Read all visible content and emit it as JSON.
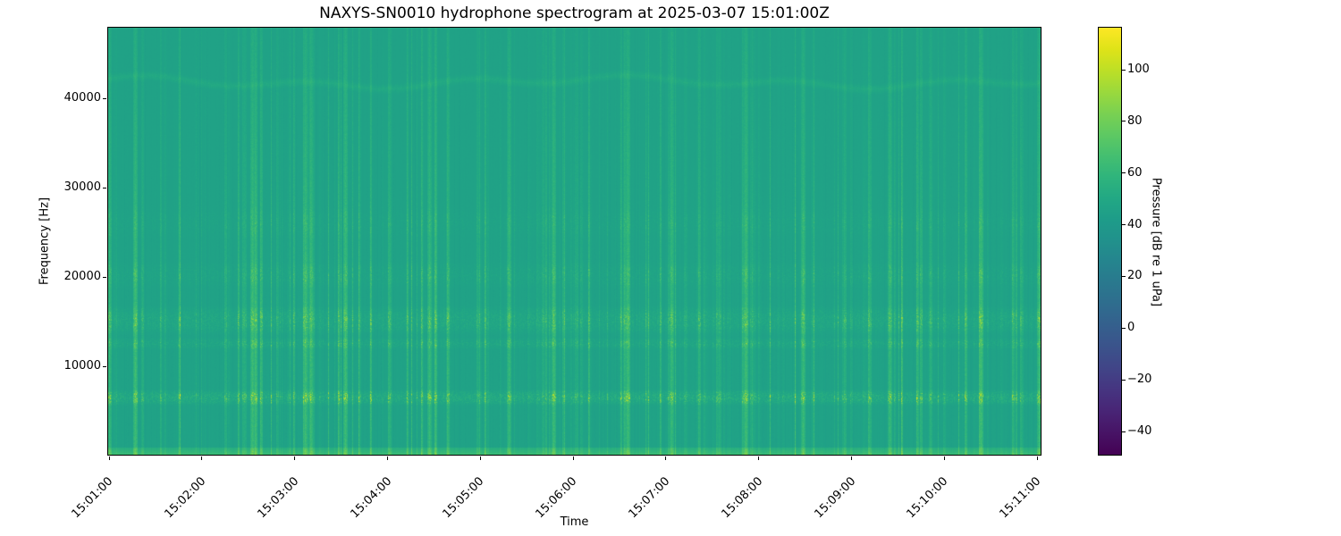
{
  "figure": {
    "background": "#ffffff",
    "text_color": "#000000"
  },
  "chart_data": {
    "type": "heatmap",
    "subtype": "spectrogram",
    "title": "NAXYS-SN0010 hydrophone spectrogram at 2025-03-07 15:01:00Z",
    "xlabel": "Time",
    "ylabel": "Frequency [Hz]",
    "x_tick_labels": [
      "15:01:00",
      "15:02:00",
      "15:03:00",
      "15:04:00",
      "15:05:00",
      "15:06:00",
      "15:07:00",
      "15:08:00",
      "15:09:00",
      "15:10:00",
      "15:11:00"
    ],
    "x_tick_rotation_deg": 45,
    "y_ticks": [
      10000,
      20000,
      30000,
      40000
    ],
    "y_tick_labels": [
      "10000",
      "20000",
      "30000",
      "40000"
    ],
    "freq_range_hz": [
      0,
      48000
    ],
    "time_range": [
      "15:01:00",
      "15:11:00"
    ],
    "grid": false,
    "legend": "colorbar-right",
    "colormap": "viridis",
    "value_range_db": [
      -49.3,
      116.6
    ],
    "colorbar": {
      "label": "Pressure [dB re 1 uPa]",
      "tick_values": [
        100,
        80,
        60,
        40,
        20,
        0,
        -20,
        -40
      ],
      "tick_labels": [
        "100",
        "80",
        "60",
        "40",
        "20",
        "0",
        "−20",
        "−40"
      ]
    },
    "viridis_stops": [
      "#440154",
      "#471365",
      "#482475",
      "#463480",
      "#414487",
      "#3b528b",
      "#355f8d",
      "#2f6c8e",
      "#2a788e",
      "#25848e",
      "#21918c",
      "#1e9c89",
      "#22a884",
      "#2fb47c",
      "#44bf70",
      "#5ec962",
      "#7ad151",
      "#9bd93c",
      "#bddf26",
      "#dfe318",
      "#fde725"
    ],
    "texture": {
      "background_db": 46.5,
      "row_noise_db": 0.6,
      "high_freq_attenuation": 0.62,
      "column_events": {
        "count": 190,
        "min_db": 1.5,
        "max_db": 18,
        "seed": 20250307
      },
      "strong_event_positions": [
        0.002,
        0.03,
        0.155,
        0.255,
        0.345,
        0.43,
        0.478,
        0.557,
        0.604,
        0.684,
        0.745,
        0.838,
        0.936,
        0.998
      ],
      "bands": [
        {
          "name": "broadband-surface-noise",
          "f_lo": 0,
          "f_hi": 850,
          "base_db": 17,
          "speckle_db": 7,
          "shape": "bottom"
        },
        {
          "name": "band-6500",
          "f_lo": 5600,
          "f_hi": 7400,
          "base_db": 1.5,
          "speckle_db": 33,
          "shape": "peak"
        },
        {
          "name": "band-12500",
          "f_lo": 11900,
          "f_hi": 13200,
          "base_db": 0.5,
          "speckle_db": 17,
          "shape": "peak"
        },
        {
          "name": "band-15000",
          "f_lo": 13500,
          "f_hi": 16800,
          "base_db": 1,
          "speckle_db": 20,
          "shape": "peak"
        },
        {
          "name": "band-20000",
          "f_lo": 18700,
          "f_hi": 21700,
          "base_db": 0,
          "speckle_db": 11,
          "shape": "peak"
        },
        {
          "name": "band-26000",
          "f_lo": 24300,
          "f_hi": 27800,
          "base_db": 0,
          "speckle_db": 7,
          "shape": "peak"
        }
      ],
      "tonal_line": {
        "f_center": 41800,
        "f_halfwidth": 600,
        "boost_db": 4.5,
        "wobble_hz": 800
      }
    }
  }
}
